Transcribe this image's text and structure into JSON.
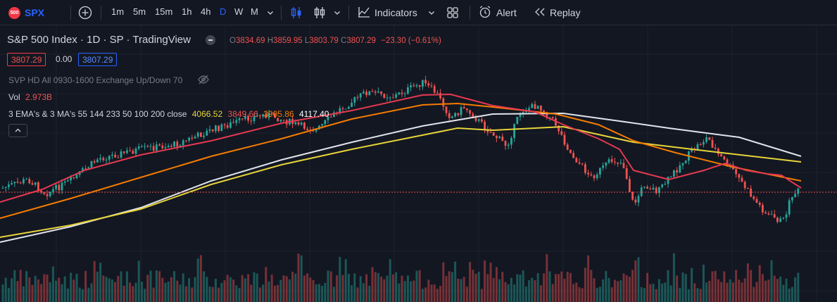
{
  "toolbar": {
    "logo_text": "500",
    "symbol": "SPX",
    "intervals": [
      "1m",
      "5m",
      "15m",
      "1h",
      "4h",
      "D",
      "W",
      "M"
    ],
    "active_interval": "D",
    "indicators_label": "Indicators",
    "alert_label": "Alert",
    "replay_label": "Replay"
  },
  "legend": {
    "title": "S&P 500 Index · 1D · SP · TradingView",
    "open_label": "O",
    "open": "3834.69",
    "high_label": "H",
    "high": "3859.95",
    "low_label": "L",
    "low": "3803.79",
    "close_label": "C",
    "close": "3807.29",
    "change": "−23.30 (−0.61%)",
    "bid": "3807.29",
    "spread": "0.00",
    "ask": "3807.29",
    "svp": "SVP HD All 0930-1600 Exchange Up/Down 70",
    "vol_label": "Vol",
    "vol_value": "2.973B",
    "ma_label": "3 EMA's & 3 MA's 55 144 233 50 100 200 close",
    "ma_values": [
      "4066.52",
      "3849.66",
      "3905.86",
      "4117.40"
    ]
  },
  "colors": {
    "background": "#131722",
    "up": "#26a69a",
    "down": "#ef5350",
    "accent": "#2962ff",
    "ema_white": "#e0e3eb",
    "ma_yellow": "#e6d43a",
    "ma_orange": "#f57c00",
    "ma_red": "#e53950"
  },
  "icons": [
    "add-symbol-icon",
    "candles-icon",
    "bar-style-icon",
    "chevron-down-icon",
    "indicators-icon",
    "layout-icon",
    "alert-icon",
    "replay-icon",
    "eye-hidden-icon",
    "collapse-icon"
  ]
}
